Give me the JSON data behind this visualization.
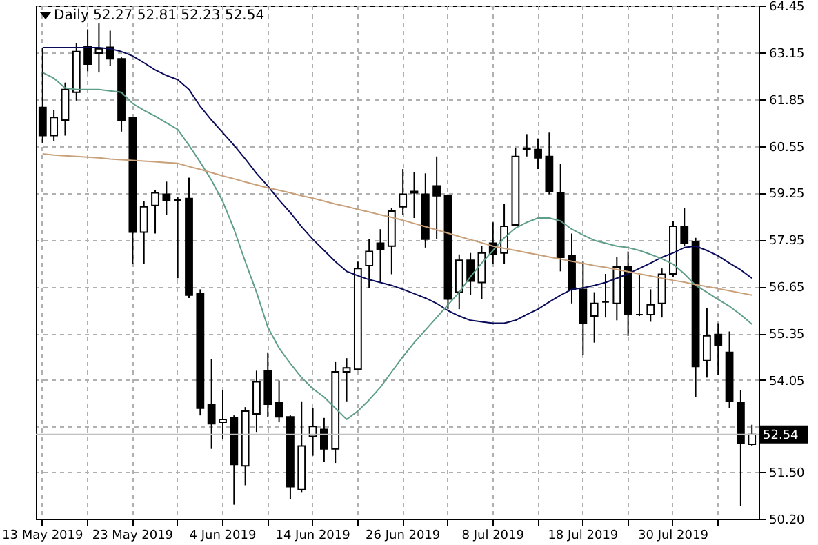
{
  "chart_data": {
    "type": "candlestick",
    "title": "Daily 52.27 52.81 52.23 52.54",
    "categories": [
      "13 May 2019",
      null,
      null,
      null,
      null,
      null,
      null,
      null,
      "23 May 2019",
      null,
      null,
      null,
      null,
      null,
      null,
      null,
      "4 Jun 2019",
      null,
      null,
      null,
      null,
      null,
      null,
      null,
      "14 Jun 2019",
      null,
      null,
      null,
      null,
      null,
      null,
      null,
      "26 Jun 2019",
      null,
      null,
      null,
      null,
      null,
      null,
      null,
      "8 Jul 2019",
      null,
      null,
      null,
      null,
      null,
      null,
      null,
      "18 Jul 2019",
      null,
      null,
      null,
      null,
      null,
      null,
      null,
      "30 Jul 2019",
      null,
      null,
      null,
      null,
      null,
      null,
      null
    ],
    "ohlc": [
      [
        61.62,
        63.28,
        60.64,
        60.84
      ],
      [
        60.84,
        61.54,
        60.68,
        61.34
      ],
      [
        61.27,
        62.31,
        60.84,
        62.12
      ],
      [
        62.04,
        63.4,
        61.81,
        63.17
      ],
      [
        63.32,
        63.79,
        62.62,
        62.82
      ],
      [
        63.13,
        63.95,
        62.59,
        63.25
      ],
      [
        63.29,
        63.75,
        62.78,
        62.97
      ],
      [
        62.97,
        63.01,
        60.95,
        61.27
      ],
      [
        61.34,
        61.34,
        57.27,
        58.16
      ],
      [
        58.16,
        59.01,
        57.27,
        58.86
      ],
      [
        58.9,
        59.32,
        58.12,
        59.25
      ],
      [
        59.21,
        59.56,
        58.63,
        59.05
      ],
      [
        59.05,
        59.13,
        56.88,
        59.05
      ],
      [
        59.09,
        59.67,
        56.33,
        56.41
      ],
      [
        56.45,
        56.57,
        53.07,
        53.27
      ],
      [
        53.38,
        54.63,
        52.14,
        52.84
      ],
      [
        52.88,
        53.77,
        52.41,
        52.96
      ],
      [
        53.0,
        53.07,
        50.59,
        51.71
      ],
      [
        51.67,
        53.3,
        51.13,
        53.19
      ],
      [
        53.11,
        54.31,
        52.61,
        54.0
      ],
      [
        54.31,
        54.82,
        53.03,
        53.38
      ],
      [
        53.42,
        54.04,
        52.88,
        53.03
      ],
      [
        53.03,
        53.07,
        50.74,
        51.09
      ],
      [
        51.01,
        53.46,
        50.94,
        52.22
      ],
      [
        52.49,
        53.27,
        51.95,
        52.76
      ],
      [
        52.68,
        53.0,
        51.79,
        52.14
      ],
      [
        52.14,
        54.55,
        51.75,
        54.28
      ],
      [
        54.28,
        54.66,
        53.46,
        54.39
      ],
      [
        54.35,
        57.34,
        54.35,
        57.15
      ],
      [
        57.23,
        57.96,
        56.61,
        57.62
      ],
      [
        57.85,
        58.24,
        56.76,
        57.69
      ],
      [
        57.77,
        58.82,
        56.99,
        58.74
      ],
      [
        58.86,
        59.91,
        58.63,
        59.21
      ],
      [
        59.25,
        59.83,
        58.55,
        59.29
      ],
      [
        59.21,
        59.79,
        57.73,
        57.96
      ],
      [
        59.44,
        60.26,
        57.96,
        59.17
      ],
      [
        59.17,
        59.21,
        56.02,
        56.3
      ],
      [
        56.49,
        57.54,
        56.02,
        57.38
      ],
      [
        57.38,
        57.58,
        56.41,
        56.8
      ],
      [
        56.76,
        57.77,
        56.3,
        57.58
      ],
      [
        57.85,
        58.43,
        57.27,
        57.54
      ],
      [
        57.58,
        58.94,
        57.27,
        58.32
      ],
      [
        58.36,
        60.49,
        58.32,
        60.26
      ],
      [
        60.45,
        60.88,
        60.26,
        60.49
      ],
      [
        60.45,
        60.76,
        59.91,
        60.22
      ],
      [
        60.26,
        60.92,
        59.21,
        59.29
      ],
      [
        59.25,
        60.06,
        57.07,
        57.46
      ],
      [
        57.5,
        58.12,
        56.18,
        56.57
      ],
      [
        56.57,
        57.34,
        54.74,
        55.63
      ],
      [
        55.83,
        56.49,
        55.09,
        56.18
      ],
      [
        56.22,
        57.0,
        55.79,
        56.22
      ],
      [
        56.18,
        57.46,
        55.71,
        57.19
      ],
      [
        57.19,
        57.62,
        55.28,
        55.87
      ],
      [
        55.87,
        56.96,
        55.83,
        55.87
      ],
      [
        55.87,
        56.57,
        55.67,
        56.14
      ],
      [
        56.18,
        57.15,
        55.79,
        56.99
      ],
      [
        57.0,
        58.47,
        56.92,
        58.32
      ],
      [
        58.32,
        58.82,
        57.77,
        57.85
      ],
      [
        57.89,
        58.0,
        53.58,
        54.43
      ],
      [
        54.59,
        56.06,
        54.12,
        55.28
      ],
      [
        55.32,
        55.63,
        54.2,
        55.01
      ],
      [
        54.82,
        55.4,
        53.27,
        53.46
      ],
      [
        53.42,
        53.77,
        50.55,
        52.3
      ],
      [
        52.27,
        52.81,
        52.23,
        52.54
      ]
    ],
    "series": [
      {
        "type": "line",
        "color": "#0a0a5a",
        "values": [
          63.28,
          63.28,
          63.28,
          63.28,
          63.28,
          63.28,
          63.25,
          63.17,
          63.05,
          62.86,
          62.66,
          62.51,
          62.39,
          62.12,
          61.65,
          61.27,
          60.92,
          60.57,
          60.19,
          59.79,
          59.44,
          59.05,
          58.7,
          58.31,
          57.96,
          57.65,
          57.34,
          57.07,
          56.95,
          56.84,
          56.76,
          56.68,
          56.57,
          56.45,
          56.33,
          56.18,
          55.98,
          55.83,
          55.71,
          55.67,
          55.63,
          55.63,
          55.71,
          55.87,
          56.02,
          56.22,
          56.41,
          56.57,
          56.61,
          56.68,
          56.76,
          56.88,
          57.0,
          57.15,
          57.3,
          57.46,
          57.58,
          57.73,
          57.77,
          57.65,
          57.5,
          57.3,
          57.11,
          56.88
        ]
      },
      {
        "type": "line",
        "color": "#5f9e8a",
        "values": [
          62.59,
          62.43,
          62.16,
          62.12,
          62.12,
          62.12,
          62.08,
          62.04,
          61.73,
          61.54,
          61.38,
          61.19,
          61.01,
          60.57,
          60.1,
          59.6,
          59.01,
          58.24,
          57.34,
          56.49,
          55.52,
          54.94,
          54.51,
          54.12,
          53.81,
          53.58,
          53.27,
          52.96,
          53.19,
          53.5,
          53.85,
          54.28,
          54.7,
          55.09,
          55.44,
          55.79,
          56.14,
          56.49,
          56.92,
          57.3,
          57.65,
          58.0,
          58.27,
          58.43,
          58.55,
          58.55,
          58.47,
          58.24,
          58.08,
          57.93,
          57.85,
          57.77,
          57.73,
          57.65,
          57.54,
          57.42,
          57.27,
          57.0,
          56.68,
          56.49,
          56.29,
          56.1,
          55.87,
          55.6
        ]
      },
      {
        "type": "line",
        "color": "#c8a07a",
        "values": [
          60.33,
          60.3,
          60.28,
          60.26,
          60.24,
          60.22,
          60.19,
          60.17,
          60.15,
          60.13,
          60.11,
          60.09,
          60.07,
          59.98,
          59.9,
          59.81,
          59.72,
          59.64,
          59.55,
          59.47,
          59.39,
          59.32,
          59.25,
          59.17,
          59.1,
          59.02,
          58.94,
          58.87,
          58.79,
          58.72,
          58.64,
          58.57,
          58.49,
          58.4,
          58.31,
          58.22,
          58.13,
          58.04,
          57.95,
          57.86,
          57.77,
          57.71,
          57.65,
          57.59,
          57.53,
          57.47,
          57.41,
          57.35,
          57.29,
          57.23,
          57.18,
          57.12,
          57.06,
          57.0,
          56.94,
          56.88,
          56.82,
          56.77,
          56.7,
          56.65,
          56.59,
          56.53,
          56.47,
          56.41
        ]
      }
    ],
    "ylim": [
      50.2,
      64.45
    ],
    "yticks": [
      {
        "value": 50.2,
        "label": "50.20"
      },
      {
        "value": 51.5,
        "label": "51.50"
      },
      {
        "value": 52.75,
        "label": null
      },
      54.05,
      55.35,
      56.65,
      57.95,
      59.25,
      60.55,
      61.85,
      63.15,
      64.45
    ],
    "ref_lines": [
      {
        "axis": "y",
        "value": 52.54,
        "label": "52.54",
        "color": "#c0c0c0"
      }
    ],
    "grid": true
  }
}
